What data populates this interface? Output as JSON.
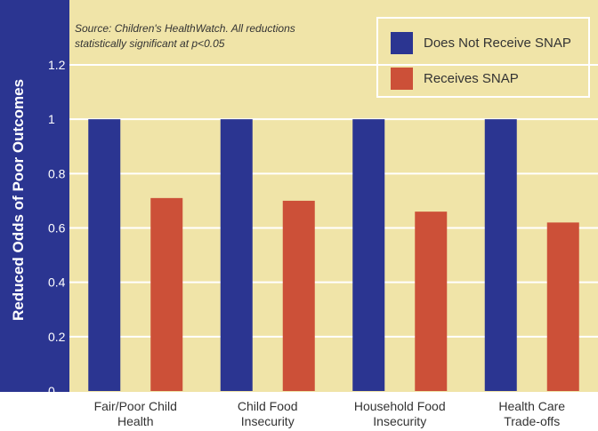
{
  "chart_data": {
    "type": "bar",
    "title": "",
    "source_note_line1": "Source: Children's HealthWatch. All reductions",
    "source_note_line2": "statistically significant at p<0.05",
    "ylabel": "Reduced Odds  of Poor Outcomes",
    "xlabel": "",
    "ylim": [
      0,
      1.2
    ],
    "yticks": [
      "0",
      "0.2",
      "0.4",
      "0.6",
      "0.8",
      "1",
      "1.2"
    ],
    "categories": [
      [
        "Fair/Poor Child",
        "Health"
      ],
      [
        "Child Food",
        "Insecurity"
      ],
      [
        "Household Food",
        "Insecurity"
      ],
      [
        "Health Care",
        "Trade-offs"
      ]
    ],
    "series": [
      {
        "name": "Does Not Receive SNAP",
        "color": "#2b3591",
        "values": [
          1.0,
          1.0,
          1.0,
          1.0
        ]
      },
      {
        "name": "Receives SNAP",
        "color": "#cc5038",
        "values": [
          0.71,
          0.7,
          0.66,
          0.62
        ]
      }
    ],
    "grid": true,
    "legend_position": "top-right",
    "colors": {
      "plot_background": "#f0e4a8",
      "axis_band": "#2b3591",
      "gridline": "#ffffff"
    }
  }
}
